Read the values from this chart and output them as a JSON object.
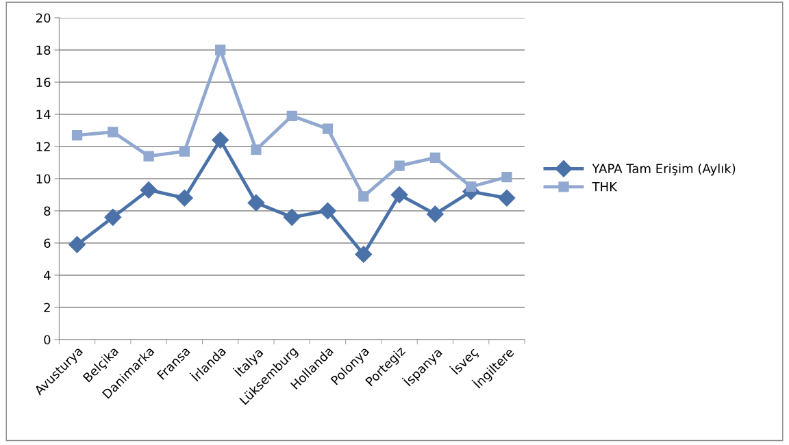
{
  "chart_data": {
    "type": "line",
    "categories": [
      "Avusturya",
      "Belçika",
      "Danimarka",
      "Fransa",
      "İrlanda",
      "İtalya",
      "Lüksemburg",
      "Hollanda",
      "Polonya",
      "Portegiz",
      "İspanya",
      "İsveç",
      "İngiltere"
    ],
    "series": [
      {
        "name": "YAPA Tam Erişim (Aylık)",
        "color": "#4a72a8",
        "marker": "diamond",
        "values": [
          5.9,
          7.6,
          9.3,
          8.8,
          12.4,
          8.5,
          7.6,
          8.0,
          5.3,
          9.0,
          7.8,
          9.2,
          8.8
        ]
      },
      {
        "name": "THK",
        "color": "#91a8d0",
        "marker": "square",
        "values": [
          12.7,
          12.9,
          11.4,
          11.7,
          18.0,
          11.8,
          13.9,
          13.1,
          8.9,
          10.8,
          11.3,
          9.5,
          10.1
        ]
      }
    ],
    "ylim": [
      0,
      20
    ],
    "yticks": [
      0,
      2,
      4,
      6,
      8,
      10,
      12,
      14,
      16,
      18,
      20
    ],
    "grid": "y",
    "legend": "right",
    "line_style": "solid"
  }
}
